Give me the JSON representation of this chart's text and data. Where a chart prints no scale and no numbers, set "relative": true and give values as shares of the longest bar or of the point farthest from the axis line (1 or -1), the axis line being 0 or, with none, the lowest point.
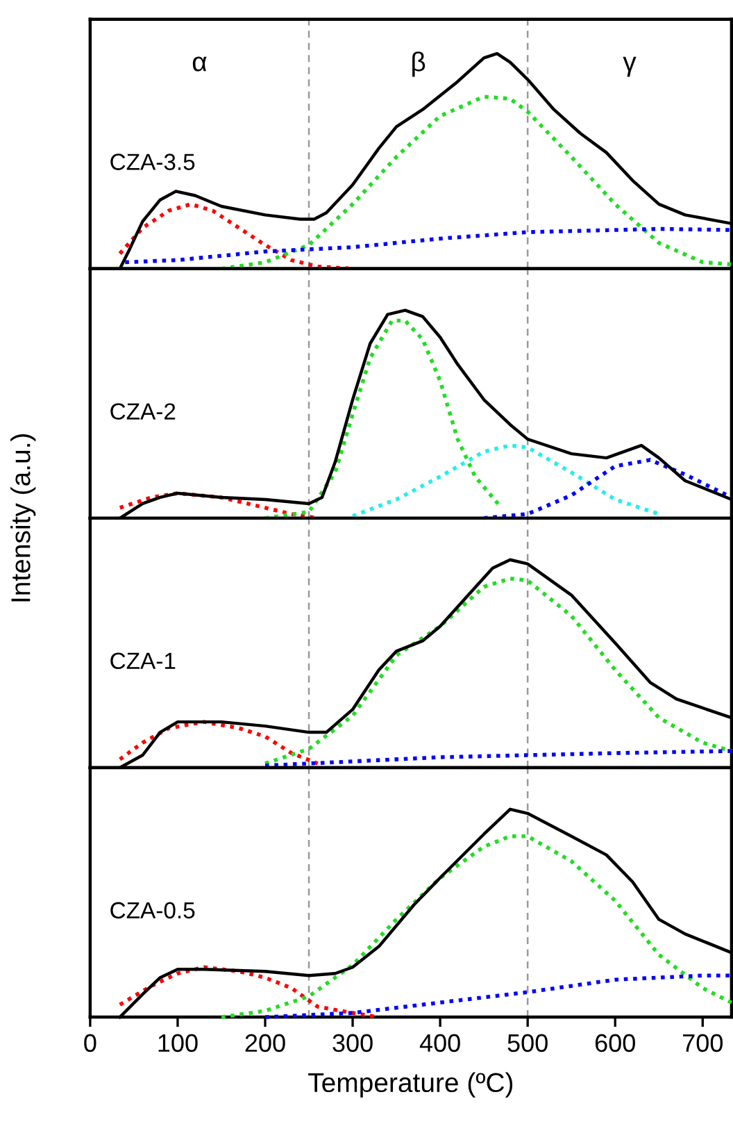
{
  "chart_data": [
    {
      "type": "line",
      "title": "CZA-3.5",
      "relative": true,
      "xlim": [
        0,
        733
      ],
      "tick_labels": false,
      "annotations": [
        "α",
        "β",
        "γ"
      ],
      "ref_lines": [
        {
          "axis": "x",
          "value": 250,
          "color": "#999999",
          "line_style": "dashed"
        },
        {
          "axis": "x",
          "value": 500,
          "color": "#999999",
          "line_style": "dashed"
        }
      ],
      "series": [
        {
          "color": "#000000",
          "line_style": "solid",
          "x": [
            34,
            45,
            60,
            80,
            98,
            120,
            150,
            200,
            240,
            256,
            270,
            300,
            330,
            350,
            380,
            420,
            450,
            465,
            480,
            500,
            530,
            560,
            590,
            620,
            650,
            680,
            733
          ],
          "values": [
            0,
            0.09,
            0.22,
            0.32,
            0.36,
            0.34,
            0.29,
            0.25,
            0.23,
            0.23,
            0.26,
            0.39,
            0.56,
            0.66,
            0.74,
            0.87,
            0.98,
            1.0,
            0.96,
            0.88,
            0.74,
            0.63,
            0.54,
            0.41,
            0.3,
            0.25,
            0.21
          ]
        },
        {
          "color": "#ff0000",
          "line_style": "dotted",
          "x": [
            34,
            60,
            90,
            115,
            140,
            170,
            200,
            230,
            260,
            300
          ],
          "values": [
            0.07,
            0.19,
            0.27,
            0.3,
            0.27,
            0.19,
            0.11,
            0.04,
            0.01,
            0
          ]
        },
        {
          "color": "#22dd22",
          "line_style": "dotted",
          "x": [
            150,
            200,
            250,
            300,
            350,
            400,
            450,
            480,
            500,
            550,
            600,
            650,
            700,
            733
          ],
          "values": [
            0,
            0.03,
            0.11,
            0.3,
            0.52,
            0.71,
            0.8,
            0.79,
            0.73,
            0.52,
            0.3,
            0.12,
            0.03,
            0.02
          ]
        },
        {
          "color": "#0000ff",
          "line_style": "dotted",
          "x": [
            40,
            100,
            200,
            300,
            400,
            500,
            600,
            650,
            733
          ],
          "values": [
            0.03,
            0.04,
            0.08,
            0.1,
            0.14,
            0.17,
            0.18,
            0.185,
            0.18
          ]
        }
      ]
    },
    {
      "type": "line",
      "title": "CZA-2",
      "ylabel": "Intensity (a.u.)",
      "relative": true,
      "xlim": [
        0,
        733
      ],
      "tick_labels": false,
      "ref_lines": [
        {
          "axis": "x",
          "value": 250,
          "color": "#999999",
          "line_style": "dashed"
        },
        {
          "axis": "x",
          "value": 500,
          "color": "#999999",
          "line_style": "dashed"
        }
      ],
      "series": [
        {
          "color": "#000000",
          "line_style": "solid",
          "x": [
            34,
            60,
            80,
            100,
            150,
            200,
            250,
            265,
            280,
            300,
            320,
            340,
            360,
            380,
            400,
            420,
            450,
            480,
            500,
            550,
            590,
            610,
            630,
            650,
            680,
            733
          ],
          "values": [
            0,
            0.07,
            0.1,
            0.12,
            0.1,
            0.09,
            0.07,
            0.1,
            0.27,
            0.57,
            0.84,
            0.98,
            1.0,
            0.97,
            0.87,
            0.74,
            0.57,
            0.45,
            0.38,
            0.31,
            0.29,
            0.32,
            0.35,
            0.29,
            0.18,
            0.09
          ]
        },
        {
          "color": "#ff0000",
          "line_style": "dotted",
          "x": [
            34,
            70,
            100,
            150,
            200,
            230,
            260
          ],
          "values": [
            0.05,
            0.1,
            0.12,
            0.1,
            0.05,
            0.02,
            0
          ]
        },
        {
          "color": "#22dd22",
          "line_style": "dotted",
          "x": [
            200,
            250,
            280,
            300,
            320,
            345,
            360,
            380,
            400,
            420,
            440,
            470
          ],
          "values": [
            0,
            0.03,
            0.22,
            0.5,
            0.77,
            0.95,
            0.95,
            0.86,
            0.66,
            0.38,
            0.2,
            0.05
          ]
        },
        {
          "color": "#22eeee",
          "line_style": "dotted",
          "x": [
            300,
            350,
            400,
            450,
            480,
            500,
            550,
            600,
            650
          ],
          "values": [
            0.01,
            0.09,
            0.2,
            0.32,
            0.35,
            0.34,
            0.22,
            0.09,
            0.02
          ]
        },
        {
          "color": "#0000ff",
          "line_style": "dotted",
          "x": [
            450,
            500,
            550,
            600,
            640,
            680,
            733
          ],
          "values": [
            0,
            0.02,
            0.11,
            0.25,
            0.28,
            0.21,
            0.1
          ]
        }
      ]
    },
    {
      "type": "line",
      "title": "CZA-1",
      "relative": true,
      "xlim": [
        0,
        733
      ],
      "tick_labels": false,
      "ref_lines": [
        {
          "axis": "x",
          "value": 250,
          "color": "#999999",
          "line_style": "dashed"
        },
        {
          "axis": "x",
          "value": 500,
          "color": "#999999",
          "line_style": "dashed"
        }
      ],
      "series": [
        {
          "color": "#000000",
          "line_style": "solid",
          "x": [
            34,
            60,
            80,
            100,
            150,
            200,
            250,
            270,
            300,
            330,
            350,
            380,
            400,
            430,
            460,
            480,
            500,
            550,
            600,
            640,
            670,
            733
          ],
          "values": [
            0,
            0.06,
            0.17,
            0.22,
            0.22,
            0.2,
            0.17,
            0.17,
            0.28,
            0.47,
            0.56,
            0.61,
            0.68,
            0.82,
            0.96,
            1.0,
            0.98,
            0.83,
            0.6,
            0.41,
            0.33,
            0.24
          ]
        },
        {
          "color": "#ff0000",
          "line_style": "dotted",
          "x": [
            34,
            60,
            90,
            130,
            170,
            200,
            230,
            260
          ],
          "values": [
            0.04,
            0.12,
            0.19,
            0.22,
            0.19,
            0.15,
            0.07,
            0.02
          ]
        },
        {
          "color": "#22dd22",
          "line_style": "dotted",
          "x": [
            200,
            250,
            300,
            350,
            400,
            450,
            480,
            500,
            550,
            600,
            650,
            700,
            733
          ],
          "values": [
            0.02,
            0.09,
            0.25,
            0.54,
            0.68,
            0.87,
            0.91,
            0.9,
            0.73,
            0.47,
            0.24,
            0.12,
            0.08
          ]
        },
        {
          "color": "#0000ff",
          "line_style": "dotted",
          "x": [
            200,
            300,
            400,
            500,
            600,
            733
          ],
          "values": [
            0.01,
            0.03,
            0.05,
            0.06,
            0.07,
            0.08
          ]
        }
      ]
    },
    {
      "type": "line",
      "title": "CZA-0.5",
      "xlabel": "Temperature (ºC)",
      "relative": true,
      "xlim": [
        0,
        733
      ],
      "xticks": [
        0,
        100,
        200,
        300,
        400,
        500,
        600,
        700
      ],
      "tick_labels": "x",
      "ref_lines": [
        {
          "axis": "x",
          "value": 250,
          "color": "#999999",
          "line_style": "dashed"
        },
        {
          "axis": "x",
          "value": 500,
          "color": "#999999",
          "line_style": "dashed"
        }
      ],
      "series": [
        {
          "color": "#000000",
          "line_style": "solid",
          "x": [
            34,
            60,
            80,
            100,
            130,
            200,
            250,
            280,
            300,
            330,
            370,
            400,
            450,
            480,
            500,
            550,
            590,
            620,
            650,
            680,
            733
          ],
          "values": [
            0,
            0.11,
            0.19,
            0.23,
            0.23,
            0.22,
            0.2,
            0.21,
            0.24,
            0.34,
            0.54,
            0.67,
            0.88,
            1.0,
            0.98,
            0.87,
            0.78,
            0.65,
            0.47,
            0.4,
            0.31
          ]
        },
        {
          "color": "#ff0000",
          "line_style": "dotted",
          "x": [
            34,
            70,
            100,
            130,
            170,
            200,
            230,
            260,
            300,
            330
          ],
          "values": [
            0.06,
            0.15,
            0.21,
            0.24,
            0.22,
            0.19,
            0.14,
            0.05,
            0.02,
            0
          ]
        },
        {
          "color": "#22dd22",
          "line_style": "dotted",
          "x": [
            150,
            200,
            250,
            300,
            350,
            400,
            450,
            480,
            500,
            550,
            600,
            650,
            700,
            733
          ],
          "values": [
            0,
            0.03,
            0.1,
            0.25,
            0.47,
            0.67,
            0.82,
            0.87,
            0.87,
            0.75,
            0.56,
            0.3,
            0.14,
            0.07
          ]
        },
        {
          "color": "#0000ff",
          "line_style": "dotted",
          "x": [
            200,
            300,
            400,
            500,
            600,
            700,
            733
          ],
          "values": [
            0,
            0.02,
            0.07,
            0.12,
            0.18,
            0.2,
            0.2
          ]
        }
      ]
    }
  ]
}
